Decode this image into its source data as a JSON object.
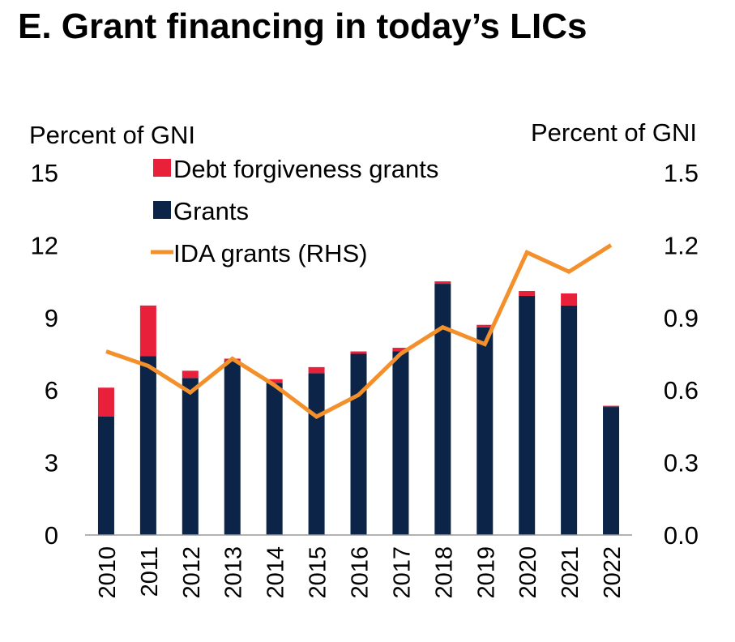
{
  "title": "E. Grant financing in today’s LICs",
  "chart_data": {
    "type": "bar",
    "stacked": true,
    "categories": [
      "2010",
      "2011",
      "2012",
      "2013",
      "2014",
      "2015",
      "2016",
      "2017",
      "2018",
      "2019",
      "2020",
      "2021",
      "2022"
    ],
    "series": [
      {
        "name": "Grants",
        "axis": "left",
        "color": "#0b2447",
        "values": [
          4.9,
          7.4,
          6.5,
          7.2,
          6.3,
          6.7,
          7.5,
          7.6,
          10.4,
          8.6,
          9.9,
          9.5,
          5.3
        ]
      },
      {
        "name": "Debt forgiveness grants",
        "axis": "left",
        "color": "#e8203a",
        "values": [
          1.2,
          2.1,
          0.3,
          0.1,
          0.15,
          0.25,
          0.1,
          0.15,
          0.1,
          0.1,
          0.2,
          0.5,
          0.05
        ]
      },
      {
        "name": "IDA grants (RHS)",
        "axis": "right",
        "type": "line",
        "color": "#f4902b",
        "values": [
          0.76,
          0.7,
          0.59,
          0.73,
          0.62,
          0.49,
          0.58,
          0.75,
          0.86,
          0.79,
          1.17,
          1.09,
          1.2
        ]
      }
    ],
    "ylabel_left": "Percent of GNI",
    "ylabel_right": "Percent of GNI",
    "ylim_left": [
      0,
      15
    ],
    "yticks_left": [
      "0",
      "3",
      "6",
      "9",
      "12",
      "15"
    ],
    "ylim_right": [
      0,
      1.5
    ],
    "yticks_right": [
      "0.0",
      "0.3",
      "0.6",
      "0.9",
      "1.2",
      "1.5"
    ],
    "legend": [
      {
        "label": "Debt forgiveness grants",
        "marker": "square",
        "color": "#e8203a"
      },
      {
        "label": "Grants",
        "marker": "square",
        "color": "#0b2447"
      },
      {
        "label": "IDA grants (RHS)",
        "marker": "line",
        "color": "#f4902b"
      }
    ],
    "legend_position": "top-left",
    "grid": false
  }
}
